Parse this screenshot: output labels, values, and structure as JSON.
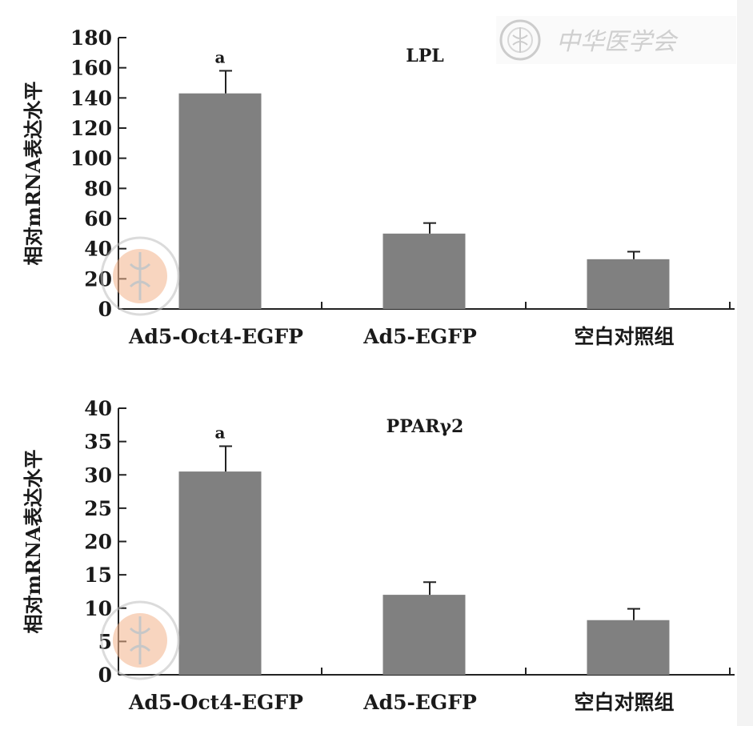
{
  "watermark": {
    "publisher_mark": "中华医学会"
  },
  "chart_data": [
    {
      "type": "bar",
      "title": "LPL",
      "ylabel": "相对mRNA表达水平",
      "xlabel": "",
      "categories": [
        "Ad5-Oct4-EGFP",
        "Ad5-EGFP",
        "空白对照组"
      ],
      "values": [
        143,
        50,
        33
      ],
      "errors": [
        15,
        7,
        5
      ],
      "annotations": [
        "a",
        "",
        ""
      ],
      "ylim": [
        0,
        180
      ],
      "yticks": [
        0,
        20,
        40,
        60,
        80,
        100,
        120,
        140,
        160,
        180
      ],
      "bar_color": "#808080"
    },
    {
      "type": "bar",
      "title": "PPARγ2",
      "ylabel": "相对mRNA表达水平",
      "xlabel": "",
      "categories": [
        "Ad5-Oct4-EGFP",
        "Ad5-EGFP",
        "空白对照组"
      ],
      "values": [
        30.5,
        12,
        8.2
      ],
      "errors": [
        3.8,
        1.9,
        1.7
      ],
      "annotations": [
        "a",
        "",
        ""
      ],
      "ylim": [
        0,
        40
      ],
      "yticks": [
        0,
        5,
        10,
        15,
        20,
        25,
        30,
        35,
        40
      ],
      "bar_color": "#808080"
    }
  ]
}
